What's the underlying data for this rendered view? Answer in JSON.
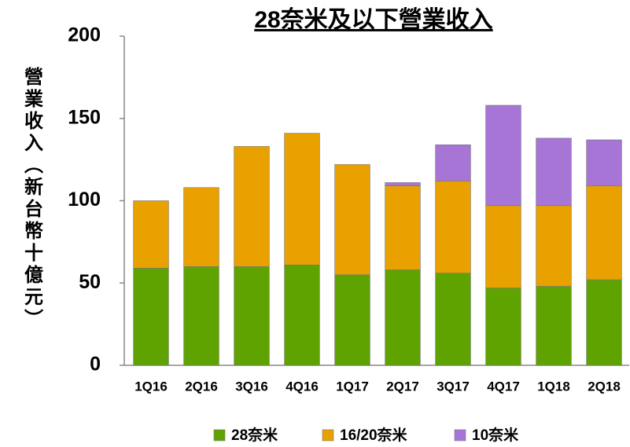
{
  "chart_data": {
    "type": "stacked_bar",
    "title": "28奈米及以下營業收入",
    "y_label": "營業收入（新台幣十億元）",
    "categories": [
      "1Q16",
      "2Q16",
      "3Q16",
      "4Q16",
      "1Q17",
      "2Q17",
      "3Q17",
      "4Q17",
      "1Q18",
      "2Q18"
    ],
    "series": [
      {
        "name": "28奈米",
        "color": "#5fa300",
        "values": [
          59,
          60,
          60,
          61,
          55,
          58,
          56,
          47,
          48,
          52
        ]
      },
      {
        "name": "16/20奈米",
        "color": "#e9a100",
        "values": [
          41,
          48,
          73,
          80,
          67,
          51,
          56,
          50,
          49,
          57
        ]
      },
      {
        "name": "10奈米",
        "color": "#a675d6",
        "values": [
          0,
          0,
          0,
          0,
          0,
          2,
          22,
          61,
          41,
          28
        ]
      }
    ],
    "ylim": [
      0,
      200
    ],
    "yticks": [
      0,
      50,
      100,
      150,
      200
    ],
    "grid": false,
    "legend": "bottom"
  }
}
